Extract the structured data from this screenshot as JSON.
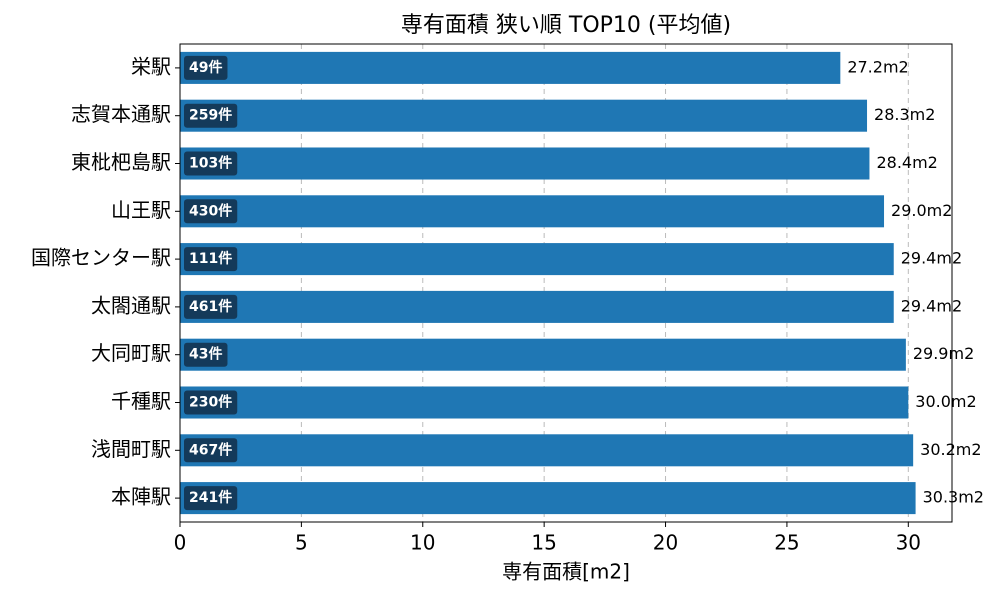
{
  "chart_data": {
    "type": "barh",
    "title": "専有面積 狭い順 TOP10 (平均値)",
    "x_label": "専有面積[m2]",
    "categories": [
      "栄駅",
      "志賀本通駅",
      "東枇杷島駅",
      "山王駅",
      "国際センター駅",
      "太閤通駅",
      "大同町駅",
      "千種駅",
      "浅間町駅",
      "本陣駅"
    ],
    "values": [
      27.2,
      28.3,
      28.4,
      29.0,
      29.4,
      29.4,
      29.9,
      30.0,
      30.2,
      30.3
    ],
    "value_labels": [
      "27.2m2",
      "28.3m2",
      "28.4m2",
      "29.0m2",
      "29.4m2",
      "29.4m2",
      "29.9m2",
      "30.0m2",
      "30.2m2",
      "30.3m2"
    ],
    "count_labels": [
      "49件",
      "259件",
      "103件",
      "430件",
      "111件",
      "461件",
      "43件",
      "230件",
      "467件",
      "241件"
    ],
    "color": "#1f77b4",
    "xlim": [
      0,
      31.8
    ],
    "xticks": [
      0,
      5,
      10,
      15,
      20,
      25,
      30
    ],
    "grid": true
  }
}
